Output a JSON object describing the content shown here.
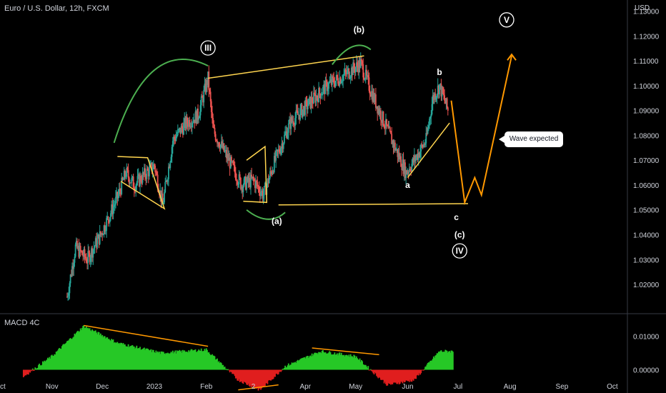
{
  "title": "Euro / U.S. Dollar, 12h, FXCM",
  "currency": "USD",
  "indicator_label": "MACD 4C",
  "callout": "Wave expected",
  "colors": {
    "up": "#26a69a",
    "down": "#ef5350",
    "fib": "#ffd54f",
    "projection": "#ff9800",
    "arrow": "#4caf50",
    "macd_up": "#26c826",
    "macd_down": "#e01e1e",
    "divergence": "#ff9800"
  },
  "wave_labels": [
    {
      "text": "III",
      "circled": true,
      "date": "2023-02-02",
      "price": 1.1152
    },
    {
      "text": "(b)",
      "circled": false,
      "date": "2023-05-03",
      "price": 1.1225
    },
    {
      "text": "b",
      "circled": false,
      "date": "2023-06-20",
      "price": 1.1055
    },
    {
      "text": "V",
      "circled": true,
      "date": "2023-07-30",
      "price": 1.1265
    },
    {
      "text": "a",
      "circled": false,
      "date": "2023-06-01",
      "price": 1.06
    },
    {
      "text": "(a)",
      "circled": false,
      "date": "2023-03-15",
      "price": 1.0455
    },
    {
      "text": "c",
      "circled": false,
      "date": "2023-06-30",
      "price": 1.047
    },
    {
      "text": "(c)",
      "circled": false,
      "date": "2023-07-02",
      "price": 1.04
    },
    {
      "text": "IV",
      "circled": true,
      "date": "2023-07-02",
      "price": 1.0335
    }
  ],
  "chart_data": {
    "type": "candlestick",
    "symbol": "EURUSD",
    "timeframe": "12h",
    "y_axis": {
      "unit": "USD",
      "ticks": [
        1.13,
        1.12,
        1.11,
        1.1,
        1.09,
        1.08,
        1.07,
        1.06,
        1.05,
        1.04,
        1.03,
        1.02
      ],
      "range": [
        1.0085,
        1.1345
      ]
    },
    "x_axis": {
      "ticks": [
        "Oct",
        "Nov",
        "Dec",
        "2023",
        "Feb",
        "2",
        "Apr",
        "May",
        "Jun",
        "Jul",
        "Aug",
        "Sep",
        "Oct"
      ],
      "range": [
        "2022-10-01",
        "2023-10-10"
      ]
    },
    "price_path": [
      {
        "date": "2022-11-10",
        "close": 1.015
      },
      {
        "date": "2022-11-15",
        "close": 1.035
      },
      {
        "date": "2022-11-22",
        "close": 1.03
      },
      {
        "date": "2022-11-30",
        "close": 1.04
      },
      {
        "date": "2022-12-10",
        "close": 1.055
      },
      {
        "date": "2022-12-15",
        "close": 1.065
      },
      {
        "date": "2022-12-20",
        "close": 1.06
      },
      {
        "date": "2023-01-01",
        "close": 1.068
      },
      {
        "date": "2023-01-06",
        "close": 1.052
      },
      {
        "date": "2023-01-12",
        "close": 1.078
      },
      {
        "date": "2023-01-20",
        "close": 1.085
      },
      {
        "date": "2023-01-27",
        "close": 1.088
      },
      {
        "date": "2023-02-02",
        "close": 1.103
      },
      {
        "date": "2023-02-05",
        "close": 1.082
      },
      {
        "date": "2023-02-12",
        "close": 1.073
      },
      {
        "date": "2023-02-22",
        "close": 1.06
      },
      {
        "date": "2023-03-01",
        "close": 1.062
      },
      {
        "date": "2023-03-07",
        "close": 1.056
      },
      {
        "date": "2023-03-14",
        "close": 1.07
      },
      {
        "date": "2023-03-23",
        "close": 1.085
      },
      {
        "date": "2023-03-30",
        "close": 1.09
      },
      {
        "date": "2023-04-14",
        "close": 1.1
      },
      {
        "date": "2023-04-26",
        "close": 1.105
      },
      {
        "date": "2023-05-04",
        "close": 1.109
      },
      {
        "date": "2023-05-10",
        "close": 1.098
      },
      {
        "date": "2023-05-20",
        "close": 1.082
      },
      {
        "date": "2023-05-31",
        "close": 1.065
      },
      {
        "date": "2023-06-05",
        "close": 1.07
      },
      {
        "date": "2023-06-12",
        "close": 1.078
      },
      {
        "date": "2023-06-16",
        "close": 1.095
      },
      {
        "date": "2023-06-20",
        "close": 1.1
      },
      {
        "date": "2023-06-25",
        "close": 1.09
      }
    ],
    "projection_path": [
      {
        "date": "2023-06-27",
        "price": 1.094
      },
      {
        "date": "2023-07-05",
        "price": 1.053
      },
      {
        "date": "2023-07-11",
        "price": 1.063
      },
      {
        "date": "2023-07-15",
        "price": 1.056
      },
      {
        "date": "2023-08-02",
        "price": 1.112
      }
    ],
    "trend_lines": [
      {
        "from": {
          "date": "2023-02-02",
          "price": 1.103
        },
        "to": {
          "date": "2023-05-06",
          "price": 1.112
        }
      },
      {
        "from": {
          "date": "2023-03-16",
          "price": 1.052
        },
        "to": {
          "date": "2023-07-07",
          "price": 1.0525
        }
      },
      {
        "from": {
          "date": "2023-06-01",
          "price": 1.063
        },
        "to": {
          "date": "2023-06-26",
          "price": 1.085
        }
      }
    ],
    "macd": {
      "label": "MACD 4C",
      "ticks": [
        0.01,
        0.0
      ],
      "range": [
        -0.0065,
        0.0165
      ],
      "histogram": [
        {
          "date": "2022-10-15",
          "value": -0.002
        },
        {
          "date": "2022-11-01",
          "value": 0.004
        },
        {
          "date": "2022-11-20",
          "value": 0.013
        },
        {
          "date": "2022-12-10",
          "value": 0.008
        },
        {
          "date": "2023-01-05",
          "value": 0.005
        },
        {
          "date": "2023-02-01",
          "value": 0.006
        },
        {
          "date": "2023-02-20",
          "value": -0.003
        },
        {
          "date": "2023-03-05",
          "value": -0.006
        },
        {
          "date": "2023-03-20",
          "value": 0.001
        },
        {
          "date": "2023-04-10",
          "value": 0.0055
        },
        {
          "date": "2023-05-01",
          "value": 0.004
        },
        {
          "date": "2023-05-20",
          "value": -0.0045
        },
        {
          "date": "2023-06-05",
          "value": -0.003
        },
        {
          "date": "2023-06-20",
          "value": 0.0055
        }
      ]
    }
  }
}
